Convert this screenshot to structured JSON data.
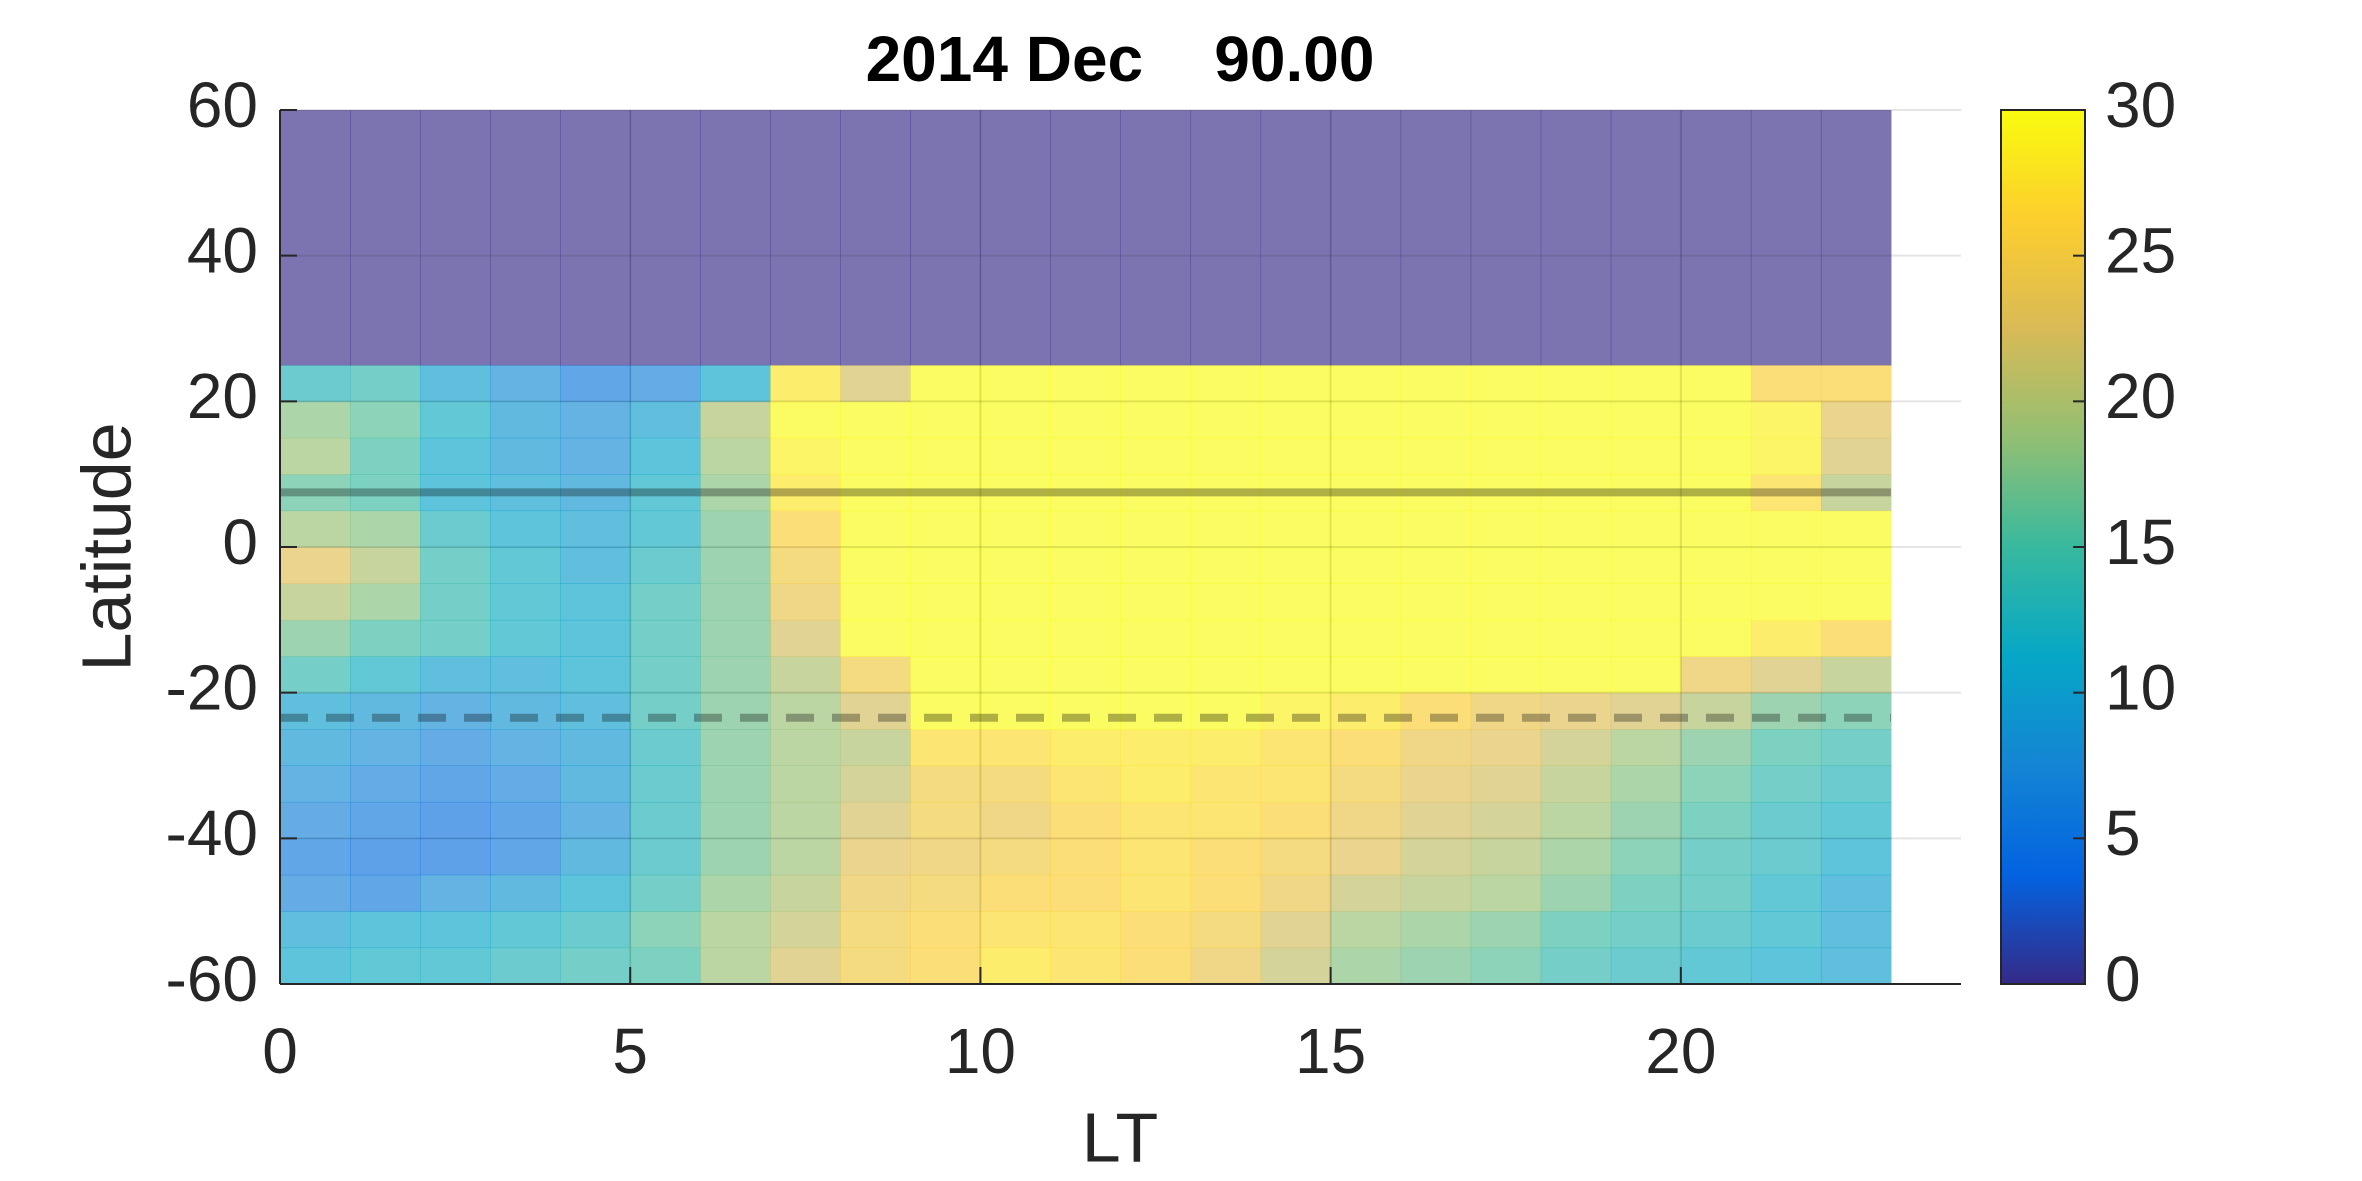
{
  "chart_data": {
    "type": "heatmap",
    "title": "2014 Dec    90.00",
    "x_label": "LT",
    "y_label": "Latitude",
    "xlim": [
      0,
      24
    ],
    "xticks": [
      0,
      5,
      10,
      15,
      20
    ],
    "ylim": [
      -60,
      60
    ],
    "yticks": [
      -60,
      -40,
      -20,
      0,
      20,
      40,
      60
    ],
    "grid": true,
    "colormap": "parula",
    "alpha": 0.65,
    "clim": [
      0,
      30
    ],
    "cticks": [
      0,
      5,
      10,
      15,
      20,
      25,
      30
    ],
    "x_edges": [
      0,
      1,
      2,
      3,
      4,
      5,
      6,
      7,
      8,
      9,
      10,
      11,
      12,
      13,
      14,
      15,
      16,
      17,
      18,
      19,
      20,
      21,
      22,
      23
    ],
    "y_edges": [
      -60,
      -55,
      -50,
      -45,
      -40,
      -35,
      -30,
      -25,
      -20,
      -15,
      -10,
      -5,
      0,
      5,
      10,
      15,
      20,
      25,
      60
    ],
    "z": [
      [
        11,
        10,
        7,
        6,
        7,
        8,
        9,
        10,
        14,
        17,
        20,
        23,
        19,
        16,
        19,
        18,
        13,
        0
      ],
      [
        12,
        11,
        6,
        5,
        6,
        7,
        8,
        9,
        12,
        15,
        18,
        20,
        18,
        15,
        15,
        16,
        14,
        0
      ],
      [
        12,
        11,
        8,
        5,
        5,
        6,
        7,
        8,
        10,
        14,
        14,
        14,
        13,
        11,
        11,
        12,
        10,
        0
      ],
      [
        13,
        12,
        9,
        6,
        6,
        7,
        8,
        9,
        10,
        12,
        12,
        12,
        11,
        10,
        9,
        9,
        8,
        0
      ],
      [
        14,
        13,
        11,
        9,
        8,
        9,
        9,
        10,
        11,
        11,
        11,
        10,
        10,
        9,
        8,
        8,
        6,
        0
      ],
      [
        15,
        16,
        14,
        13,
        13,
        13,
        13,
        14,
        14,
        14,
        14,
        13,
        12,
        12,
        11,
        10,
        7,
        0
      ],
      [
        19,
        19,
        18,
        17,
        17,
        17,
        17,
        17,
        17,
        17,
        17,
        17,
        17,
        18,
        19,
        20,
        11,
        0
      ],
      [
        22,
        21,
        20,
        19,
        19,
        19,
        19,
        19,
        20,
        22,
        24,
        25,
        26,
        28,
        29,
        30,
        28,
        0
      ],
      [
        25,
        25,
        24,
        23,
        22,
        21,
        20,
        22,
        25,
        30,
        30,
        30,
        30,
        30,
        30,
        30,
        22,
        0
      ],
      [
        26,
        26,
        25,
        24,
        25,
        25,
        27,
        30,
        30,
        30,
        30,
        30,
        30,
        30,
        30,
        30,
        30,
        0
      ],
      [
        28,
        27,
        26,
        25,
        24,
        25,
        27,
        30,
        30,
        30,
        30,
        30,
        30,
        30,
        30,
        30,
        30,
        0
      ],
      [
        27,
        27,
        26,
        26,
        26,
        27,
        28,
        30,
        30,
        30,
        30,
        30,
        30,
        30,
        30,
        30,
        30,
        0
      ],
      [
        26,
        26,
        27,
        27,
        27,
        28,
        28,
        30,
        30,
        30,
        30,
        30,
        30,
        30,
        30,
        30,
        30,
        0
      ],
      [
        24,
        25,
        26,
        26,
        27,
        27,
        28,
        30,
        30,
        30,
        30,
        30,
        30,
        30,
        30,
        30,
        30,
        0
      ],
      [
        21,
        22,
        24,
        25,
        26,
        27,
        27,
        29,
        30,
        30,
        30,
        30,
        30,
        30,
        30,
        30,
        30,
        0
      ],
      [
        18,
        19,
        21,
        23,
        24,
        25,
        26,
        28,
        30,
        30,
        30,
        30,
        30,
        30,
        30,
        30,
        30,
        0
      ],
      [
        17,
        18,
        20,
        21,
        22,
        23,
        24,
        26,
        30,
        30,
        30,
        30,
        30,
        30,
        30,
        30,
        30,
        0
      ],
      [
        16,
        17,
        19,
        20,
        21,
        22,
        23,
        24,
        30,
        30,
        30,
        30,
        30,
        30,
        30,
        30,
        30,
        0
      ],
      [
        14,
        15,
        17,
        18,
        19,
        20,
        21,
        23,
        30,
        30,
        30,
        30,
        30,
        30,
        30,
        30,
        30,
        0
      ],
      [
        13,
        14,
        15,
        16,
        17,
        18,
        19,
        22,
        30,
        30,
        30,
        30,
        30,
        30,
        30,
        30,
        30,
        0
      ],
      [
        12,
        13,
        14,
        14,
        15,
        16,
        17,
        20,
        24,
        30,
        30,
        30,
        30,
        30,
        30,
        30,
        30,
        0
      ],
      [
        11,
        12,
        12,
        13,
        13,
        14,
        15,
        17,
        22,
        28,
        30,
        30,
        30,
        27,
        29,
        29,
        26,
        0
      ],
      [
        10,
        10,
        10,
        11,
        12,
        13,
        14,
        16,
        20,
        26,
        30,
        30,
        30,
        20,
        22,
        23,
        26,
        0
      ]
    ],
    "hlines": [
      {
        "value": 7.5,
        "style": "solid"
      },
      {
        "value": -23.44,
        "style": "dashed"
      }
    ]
  }
}
